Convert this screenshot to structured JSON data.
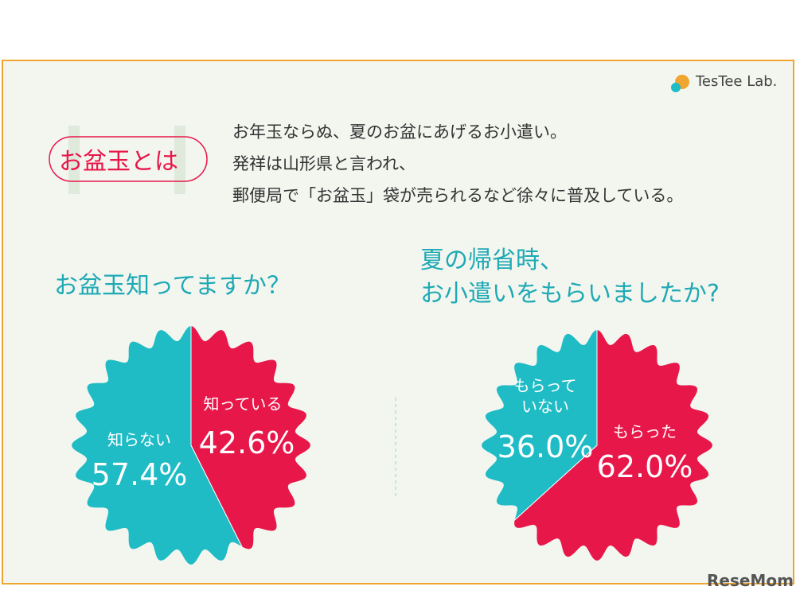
{
  "brand": "TesTee Lab.",
  "header": {
    "title": "お盆玉とは",
    "lines": [
      "お年玉ならぬ、夏のお盆にあげるお小遣い。",
      "発祥は山形県と言われ、",
      "郵便局で「お盆玉」袋が売られるなど徐々に普及している。"
    ]
  },
  "watermark": "ReseMom",
  "chart_data": [
    {
      "type": "pie",
      "title": [
        "お盆玉知ってますか？"
      ],
      "categories": [
        "知っている",
        "知らない"
      ],
      "values": [
        42.6,
        57.4
      ],
      "value_labels": [
        "42.6%",
        "57.4%"
      ],
      "colors": [
        "#e8174a",
        "#1fbcc6"
      ]
    },
    {
      "type": "pie",
      "title": [
        "夏の帰省時、",
        "お小遣いをもらいましたか?"
      ],
      "categories": [
        "もらった",
        "もらっていない"
      ],
      "values": [
        62.0,
        36.0
      ],
      "value_labels": [
        "62.0%",
        "36.0%"
      ],
      "colors": [
        "#e8174a",
        "#1fbcc6"
      ]
    }
  ]
}
